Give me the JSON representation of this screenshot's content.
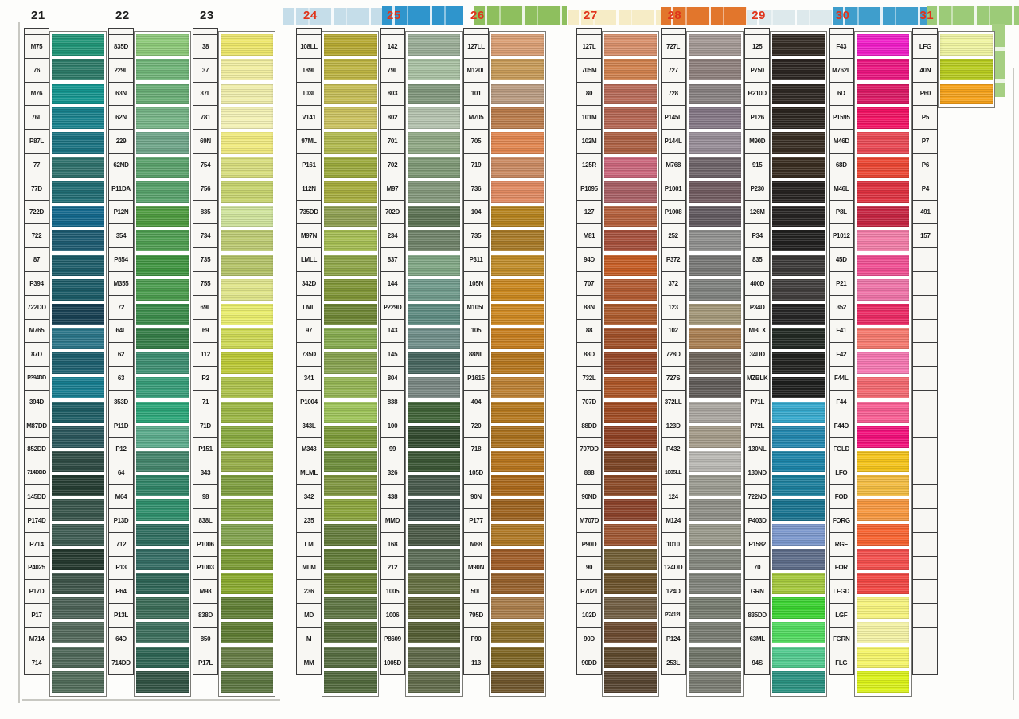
{
  "page": {
    "kind": "embroidery thread shade card (scanned)",
    "cell_format": [
      "code",
      "swatch_color"
    ]
  },
  "header_paint": [
    {
      "name": "paint-behind-24",
      "color": "#c5dde9"
    },
    {
      "name": "paint-behind-25",
      "color": "#2f95cc"
    },
    {
      "name": "paint-right-of-26",
      "color": "#8ebf5e"
    },
    {
      "name": "paint-behind-27",
      "color": "#f6ecc6"
    },
    {
      "name": "paint-behind-28",
      "color": "#e2762c"
    },
    {
      "name": "paint-behind-29",
      "color": "#dde9ec"
    },
    {
      "name": "paint-behind-30",
      "color": "#3f9ecc"
    },
    {
      "name": "paint-behind-31",
      "color": "#9ccb78"
    },
    {
      "name": "paint-tail-right",
      "color": "#a6cf82"
    }
  ],
  "columns": [
    {
      "number": "21",
      "number_color": "#1e1e1e",
      "cells": [
        [
          "M75",
          "#219577"
        ],
        [
          "76",
          "#2d7a68"
        ],
        [
          "M76",
          "#14948e"
        ],
        [
          "76L",
          "#18808b"
        ],
        [
          "P87L",
          "#1a7180"
        ],
        [
          "77",
          "#2f706b"
        ],
        [
          "77D",
          "#216c73"
        ],
        [
          "722D",
          "#14688c"
        ],
        [
          "722",
          "#1e5b71"
        ],
        [
          "87",
          "#1d5c69"
        ],
        [
          "P394",
          "#1c5b67"
        ],
        [
          "722DD",
          "#194053"
        ],
        [
          "M765",
          "#2b7588"
        ],
        [
          "87D",
          "#1e606f"
        ],
        [
          "P394DD",
          "#177d8f"
        ],
        [
          "394D",
          "#1e5d64"
        ],
        [
          "M87DD",
          "#2a565b"
        ],
        [
          "852DD",
          "#2f4b44"
        ],
        [
          "714DDD",
          "#263d33"
        ],
        [
          "145DD",
          "#38554b"
        ],
        [
          "P174D",
          "#3d5b51"
        ],
        [
          "P714",
          "#25392f"
        ],
        [
          "P4025",
          "#3e5449"
        ],
        [
          "P17D",
          "#4b6156"
        ],
        [
          "P17",
          "#53695b"
        ],
        [
          "M714",
          "#4e6758"
        ],
        [
          "714",
          "#506b59"
        ]
      ]
    },
    {
      "number": "22",
      "number_color": "#1e1e1e",
      "cells": [
        [
          "835D",
          "#8dc979"
        ],
        [
          "229L",
          "#70b478"
        ],
        [
          "63N",
          "#69ac75"
        ],
        [
          "62N",
          "#75b285"
        ],
        [
          "229",
          "#6ea488"
        ],
        [
          "62ND",
          "#5ba16c"
        ],
        [
          "P11DA",
          "#58a16b"
        ],
        [
          "P12N",
          "#4f9b40"
        ],
        [
          "354",
          "#4f9d51"
        ],
        [
          "P854",
          "#409441"
        ],
        [
          "M355",
          "#4b9b4e"
        ],
        [
          "72",
          "#3c8b4b"
        ],
        [
          "64L",
          "#367d47"
        ],
        [
          "62",
          "#3e8f72"
        ],
        [
          "63",
          "#379c78"
        ],
        [
          "353D",
          "#2ba578"
        ],
        [
          "P11D",
          "#5baa8b"
        ],
        [
          "P12",
          "#44846b"
        ],
        [
          "64",
          "#308367"
        ],
        [
          "M64",
          "#308f6c"
        ],
        [
          "P13D",
          "#2e6c5e"
        ],
        [
          "712",
          "#346c63"
        ],
        [
          "P13",
          "#2e6456"
        ],
        [
          "P64",
          "#3b6b57"
        ],
        [
          "P13L",
          "#3d6f5d"
        ],
        [
          "64D",
          "#2e6453"
        ],
        [
          "714DD",
          "#325344"
        ]
      ]
    },
    {
      "number": "23",
      "number_color": "#1e1e1e",
      "cells": [
        [
          "38",
          "#ede76b"
        ],
        [
          "37",
          "#f1eea1"
        ],
        [
          "37L",
          "#efedac"
        ],
        [
          "781",
          "#f3f1b5"
        ],
        [
          "69N",
          "#f0ea7f"
        ],
        [
          "754",
          "#d7dd7e"
        ],
        [
          "756",
          "#c7d46f"
        ],
        [
          "835",
          "#d0e49d"
        ],
        [
          "734",
          "#bdcb73"
        ],
        [
          "735",
          "#b4c368"
        ],
        [
          "755",
          "#e0e58b"
        ],
        [
          "69L",
          "#e9ed6e"
        ],
        [
          "69",
          "#ced956"
        ],
        [
          "112",
          "#bdca38"
        ],
        [
          "P2",
          "#acc14b"
        ],
        [
          "71",
          "#9bb645"
        ],
        [
          "71D",
          "#88a940"
        ],
        [
          "P151",
          "#95ac49"
        ],
        [
          "343",
          "#7e9d40"
        ],
        [
          "98",
          "#87a643"
        ],
        [
          "838L",
          "#80a14d"
        ],
        [
          "P1006",
          "#7b9b36"
        ],
        [
          "P1003",
          "#89a92f"
        ],
        [
          "M98",
          "#607e36"
        ],
        [
          "838D",
          "#5f7d34"
        ],
        [
          "850",
          "#677d46"
        ],
        [
          "P17L",
          "#5b7541"
        ]
      ]
    },
    {
      "number": "24",
      "number_color": "#e0341b",
      "cells": [
        [
          "108LL",
          "#b6a933"
        ],
        [
          "189L",
          "#bdb443"
        ],
        [
          "103L",
          "#c4bc56"
        ],
        [
          "V141",
          "#cac15f"
        ],
        [
          "97ML",
          "#b1b94f"
        ],
        [
          "P161",
          "#9ba93d"
        ],
        [
          "112N",
          "#a6ac3e"
        ],
        [
          "735DD",
          "#8f9f53"
        ],
        [
          "M97N",
          "#a5bd53"
        ],
        [
          "LMLL",
          "#8ea549"
        ],
        [
          "342D",
          "#7f9437"
        ],
        [
          "LML",
          "#6e8536"
        ],
        [
          "97",
          "#86aa4f"
        ],
        [
          "735D",
          "#88a351"
        ],
        [
          "341",
          "#94b454"
        ],
        [
          "P1004",
          "#9dc359"
        ],
        [
          "343L",
          "#7b9939"
        ],
        [
          "M343",
          "#6e8d3d"
        ],
        [
          "MLML",
          "#7f9541"
        ],
        [
          "342",
          "#8ba43d"
        ],
        [
          "235",
          "#637a3b"
        ],
        [
          "LM",
          "#607937"
        ],
        [
          "MLM",
          "#6a8035"
        ],
        [
          "236",
          "#5d7443"
        ],
        [
          "MD",
          "#586e3c"
        ],
        [
          "M",
          "#576d42"
        ],
        [
          "MM",
          "#51693d"
        ]
      ]
    },
    {
      "number": "25",
      "number_color": "#e0341b",
      "cells": [
        [
          "142",
          "#9bae97"
        ],
        [
          "79L",
          "#a9c1a3"
        ],
        [
          "803",
          "#80967c"
        ],
        [
          "802",
          "#b3c1ad"
        ],
        [
          "701",
          "#90a885"
        ],
        [
          "702",
          "#7e9775"
        ],
        [
          "M97",
          "#83977b"
        ],
        [
          "702D",
          "#5e7456"
        ],
        [
          "234",
          "#6f8269"
        ],
        [
          "837",
          "#80a684"
        ],
        [
          "144",
          "#709a8b"
        ],
        [
          "P229D",
          "#5e8b81"
        ],
        [
          "143",
          "#708e89"
        ],
        [
          "145",
          "#486760"
        ],
        [
          "804",
          "#788681"
        ],
        [
          "838",
          "#3f6237"
        ],
        [
          "100",
          "#324a2f"
        ],
        [
          "99",
          "#3b5635"
        ],
        [
          "326",
          "#47594b"
        ],
        [
          "438",
          "#45584f"
        ],
        [
          "MMD",
          "#495845"
        ],
        [
          "168",
          "#5b6c56"
        ],
        [
          "212",
          "#646f42"
        ],
        [
          "1005",
          "#5d6438"
        ],
        [
          "1006",
          "#565f36"
        ],
        [
          "P8609",
          "#5f6949"
        ],
        [
          "1005D",
          "#616b4b"
        ]
      ]
    },
    {
      "number": "26",
      "number_color": "#e0341b",
      "cells": [
        [
          "127LL",
          "#da9f75"
        ],
        [
          "M120L",
          "#c79b59"
        ],
        [
          "101",
          "#b99b81"
        ],
        [
          "M705",
          "#b97b4b"
        ],
        [
          "705",
          "#e18650"
        ],
        [
          "719",
          "#c98a62"
        ],
        [
          "736",
          "#e08a62"
        ],
        [
          "104",
          "#b5831f"
        ],
        [
          "735",
          "#a87a28"
        ],
        [
          "P311",
          "#c08c2a"
        ],
        [
          "105N",
          "#c9871f"
        ],
        [
          "M105L",
          "#cd8822"
        ],
        [
          "105",
          "#c57e20"
        ],
        [
          "88NL",
          "#b6771f"
        ],
        [
          "P1615",
          "#bb8034"
        ],
        [
          "404",
          "#b4781f"
        ],
        [
          "720",
          "#a9701e"
        ],
        [
          "718",
          "#b6751f"
        ],
        [
          "105D",
          "#aa691c"
        ],
        [
          "90N",
          "#9d6320"
        ],
        [
          "P177",
          "#ae7724"
        ],
        [
          "M88",
          "#9e5c28"
        ],
        [
          "M90N",
          "#96612d"
        ],
        [
          "50L",
          "#a97d4b"
        ],
        [
          "795D",
          "#8b6e2a"
        ],
        [
          "F90",
          "#7e6524"
        ],
        [
          "113",
          "#6f562c"
        ]
      ]
    },
    {
      "number": "27",
      "number_color": "#e0341b",
      "cells": [
        [
          "127L",
          "#d8906c"
        ],
        [
          "705M",
          "#d0814e"
        ],
        [
          "80",
          "#b66a58"
        ],
        [
          "101M",
          "#b26451"
        ],
        [
          "102M",
          "#ab6043"
        ],
        [
          "125R",
          "#ca667c"
        ],
        [
          "P1095",
          "#a86065"
        ],
        [
          "127",
          "#b4613e"
        ],
        [
          "M81",
          "#a5503c"
        ],
        [
          "94D",
          "#c55d25"
        ],
        [
          "707",
          "#b15b32"
        ],
        [
          "88N",
          "#ab5b2d"
        ],
        [
          "88",
          "#9f5029"
        ],
        [
          "88D",
          "#984a2b"
        ],
        [
          "732L",
          "#ac5628"
        ],
        [
          "707D",
          "#9f4b23"
        ],
        [
          "88DD",
          "#8d4023"
        ],
        [
          "707DD",
          "#7b4526"
        ],
        [
          "888",
          "#8b4b29"
        ],
        [
          "90ND",
          "#8b432b"
        ],
        [
          "M707D",
          "#9d5531"
        ],
        [
          "P90D",
          "#705d34"
        ],
        [
          "90",
          "#6b522b"
        ],
        [
          "P7021",
          "#705d43"
        ],
        [
          "102D",
          "#6c4b31"
        ],
        [
          "90D",
          "#5e492d"
        ],
        [
          "90DD",
          "#574531"
        ]
      ]
    },
    {
      "number": "28",
      "number_color": "#e0341b",
      "cells": [
        [
          "727L",
          "#a39894"
        ],
        [
          "727",
          "#8e807d"
        ],
        [
          "728",
          "#878080"
        ],
        [
          "P145L",
          "#837684"
        ],
        [
          "P144L",
          "#968c96"
        ],
        [
          "M768",
          "#6d6368"
        ],
        [
          "P1001",
          "#705b60"
        ],
        [
          "P1008",
          "#625a60"
        ],
        [
          "252",
          "#8f8f8d"
        ],
        [
          "P372",
          "#787876"
        ],
        [
          "372",
          "#7f817e"
        ],
        [
          "123",
          "#a39779"
        ],
        [
          "102",
          "#a97f53"
        ],
        [
          "728D",
          "#6f665d"
        ],
        [
          "727S",
          "#605b58"
        ],
        [
          "372LL",
          "#a9a59f"
        ],
        [
          "123D",
          "#a49b89"
        ],
        [
          "P432",
          "#b9b8b3"
        ],
        [
          "1005LL",
          "#9b9b91"
        ],
        [
          "124",
          "#8f8f87"
        ],
        [
          "M124",
          "#979789"
        ],
        [
          "1010",
          "#83867d"
        ],
        [
          "124DD",
          "#80837b"
        ],
        [
          "124D",
          "#767b6f"
        ],
        [
          "P7412L",
          "#797d73"
        ],
        [
          "P124",
          "#707569"
        ],
        [
          "253L",
          "#797b71"
        ]
      ]
    },
    {
      "number": "29",
      "number_color": "#e0341b",
      "cells": [
        [
          "125",
          "#332b24"
        ],
        [
          "P750",
          "#2b2521"
        ],
        [
          "B210D",
          "#2e2823"
        ],
        [
          "P126",
          "#2b251f"
        ],
        [
          "M90D",
          "#372d22"
        ],
        [
          "915",
          "#382c20"
        ],
        [
          "P230",
          "#262220"
        ],
        [
          "126M",
          "#262322"
        ],
        [
          "P34",
          "#21201f"
        ],
        [
          "835",
          "#3a3837"
        ],
        [
          "400D",
          "#403d3c"
        ],
        [
          "P34D",
          "#262525"
        ],
        [
          "MBLX",
          "#222923"
        ],
        [
          "34DD",
          "#222320"
        ],
        [
          "MZBLK",
          "#1e1f1d"
        ],
        [
          "P71L",
          "#35a8cc"
        ],
        [
          "P72L",
          "#2286ad"
        ],
        [
          "130NL",
          "#1d84a8"
        ],
        [
          "130ND",
          "#1d7f9c"
        ],
        [
          "722ND",
          "#1a7490"
        ],
        [
          "P403D",
          "#7b97cc"
        ],
        [
          "P1582",
          "#5d6c88"
        ],
        [
          "70",
          "#a5c83e"
        ],
        [
          "GRN",
          "#3bd131"
        ],
        [
          "835DD",
          "#52db60"
        ],
        [
          "63ML",
          "#52c98e"
        ],
        [
          "94S",
          "#2a9180"
        ]
      ]
    },
    {
      "number": "30",
      "number_color": "#e0341b",
      "cells": [
        [
          "F43",
          "#f01ec8"
        ],
        [
          "M762L",
          "#ea1680"
        ],
        [
          "6D",
          "#d91a64"
        ],
        [
          "P1595",
          "#f01263"
        ],
        [
          "M46D",
          "#e84853"
        ],
        [
          "68D",
          "#ea4733"
        ],
        [
          "M46L",
          "#dd3240"
        ],
        [
          "P8L",
          "#c52643"
        ],
        [
          "P1012",
          "#f27ea8"
        ],
        [
          "45D",
          "#f04f93"
        ],
        [
          "P21",
          "#ee74a8"
        ],
        [
          "352",
          "#ea2a64"
        ],
        [
          "F41",
          "#f4796e"
        ],
        [
          "F42",
          "#f678b2"
        ],
        [
          "F44L",
          "#f2686f"
        ],
        [
          "F44",
          "#f75e93"
        ],
        [
          "F44D",
          "#f1107a"
        ],
        [
          "FGLD",
          "#f4c41c"
        ],
        [
          "LFO",
          "#f2bc42"
        ],
        [
          "FOD",
          "#f79840"
        ],
        [
          "FORG",
          "#f6622f"
        ],
        [
          "RGF",
          "#f24f4d"
        ],
        [
          "FOR",
          "#f04844"
        ],
        [
          "LFGD",
          "#f6f37e"
        ],
        [
          "LGF",
          "#f5f3a6"
        ],
        [
          "FGRN",
          "#f5f469"
        ],
        [
          "FLG",
          "#dbf21a"
        ]
      ]
    },
    {
      "number": "31",
      "number_color": "#e0341b",
      "cells": [
        [
          "LFG",
          "#f0f5a2"
        ],
        [
          "40N",
          "#b8cc20"
        ],
        [
          "P60",
          "#f5a21c"
        ],
        [
          "P5",
          null
        ],
        [
          "P7",
          null
        ],
        [
          "P6",
          null
        ],
        [
          "P4",
          null
        ],
        [
          "491",
          null
        ],
        [
          "157",
          null
        ],
        [
          "",
          null
        ],
        [
          "",
          null
        ],
        [
          "",
          null
        ],
        [
          "",
          null
        ],
        [
          "",
          null
        ],
        [
          "",
          null
        ],
        [
          "",
          null
        ],
        [
          "",
          null
        ],
        [
          "",
          null
        ],
        [
          "",
          null
        ],
        [
          "",
          null
        ],
        [
          "",
          null
        ],
        [
          "",
          null
        ],
        [
          "",
          null
        ],
        [
          "",
          null
        ],
        [
          "",
          null
        ],
        [
          "",
          null
        ],
        [
          "",
          null
        ]
      ]
    }
  ]
}
